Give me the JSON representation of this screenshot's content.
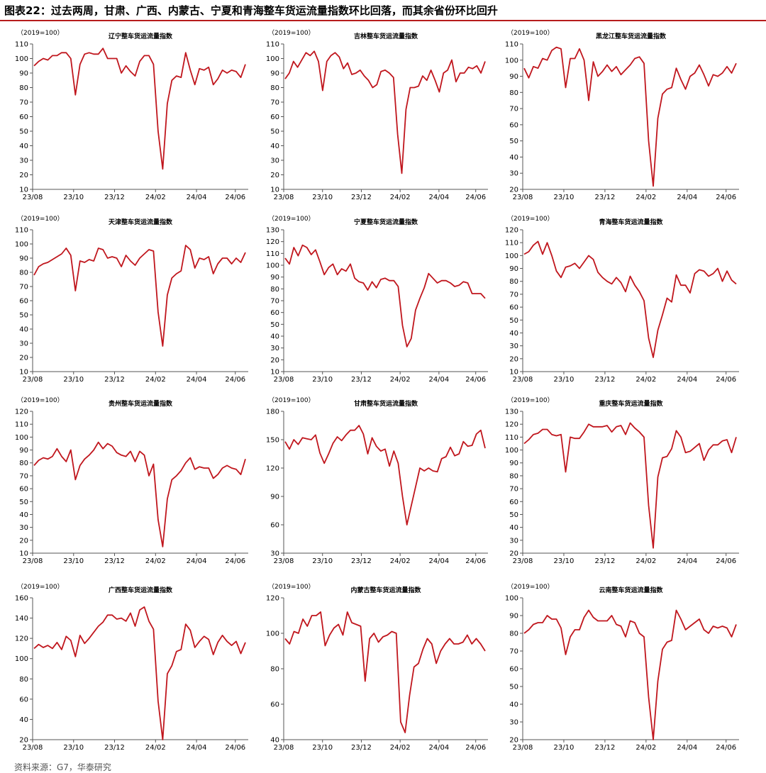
{
  "figure_title": "图表22：过去两周，甘肃、广西、内蒙古、宁夏和青海整车货运流量指数环比回落，而其余省份环比回升",
  "source_note": "资料来源：G7，华泰研究",
  "colors": {
    "line": "#c0161d",
    "title_rule": "#b71c1c",
    "axis": "#555555"
  },
  "chart_data": [
    {
      "type": "line",
      "title": "辽宁整车货运流量指数",
      "unit_label": "（2019=100）",
      "ylim": [
        10,
        110
      ],
      "yticks": [
        10,
        20,
        30,
        40,
        50,
        60,
        70,
        80,
        90,
        100,
        110
      ],
      "x_ticks": [
        "23/08",
        "23/10",
        "23/12",
        "24/02",
        "24/04",
        "24/06"
      ],
      "series": [
        {
          "values": [
            95,
            98,
            100,
            99,
            102,
            102,
            104,
            104,
            100,
            75,
            96,
            103,
            104,
            103,
            103,
            107,
            100,
            100,
            100,
            90,
            95,
            91,
            88,
            98,
            102,
            102,
            96,
            50,
            24,
            69,
            85,
            88,
            87,
            104,
            92,
            82,
            93,
            92,
            94,
            82,
            86,
            92,
            90,
            92,
            91,
            87,
            96
          ]
        }
      ]
    },
    {
      "type": "line",
      "title": "吉林整车货运流量指数",
      "unit_label": "（2019=100）",
      "ylim": [
        10,
        110
      ],
      "yticks": [
        10,
        20,
        30,
        40,
        50,
        60,
        70,
        80,
        90,
        100,
        110
      ],
      "x_ticks": [
        "23/08",
        "23/10",
        "23/12",
        "24/02",
        "24/04",
        "24/06"
      ],
      "series": [
        {
          "values": [
            86,
            90,
            98,
            94,
            99,
            104,
            102,
            105,
            98,
            78,
            98,
            102,
            104,
            101,
            93,
            97,
            89,
            90,
            92,
            88,
            85,
            80,
            82,
            91,
            92,
            90,
            87,
            48,
            21,
            65,
            80,
            80,
            81,
            88,
            85,
            92,
            85,
            77,
            90,
            92,
            99,
            84,
            90,
            90,
            94,
            93,
            95,
            90,
            98
          ]
        }
      ]
    },
    {
      "type": "line",
      "title": "黑龙江整车货运流量指数",
      "unit_label": "（2019=100）",
      "ylim": [
        20,
        110
      ],
      "yticks": [
        20,
        30,
        40,
        50,
        60,
        70,
        80,
        90,
        100,
        110
      ],
      "x_ticks": [
        "23/08",
        "23/10",
        "23/12",
        "24/02",
        "24/04",
        "24/06"
      ],
      "series": [
        {
          "values": [
            95,
            89,
            96,
            95,
            101,
            100,
            106,
            108,
            107,
            83,
            101,
            101,
            107,
            100,
            75,
            99,
            90,
            93,
            97,
            93,
            96,
            91,
            94,
            97,
            101,
            102,
            98,
            50,
            22,
            64,
            79,
            82,
            83,
            95,
            88,
            82,
            90,
            92,
            97,
            91,
            84,
            91,
            90,
            92,
            96,
            92,
            98
          ]
        }
      ]
    },
    {
      "type": "line",
      "title": "天津整车货运流量指数",
      "unit_label": "（2019=100）",
      "ylim": [
        10,
        110
      ],
      "yticks": [
        10,
        20,
        30,
        40,
        50,
        60,
        70,
        80,
        90,
        100,
        110
      ],
      "x_ticks": [
        "23/08",
        "23/10",
        "23/12",
        "24/02",
        "24/04",
        "24/06"
      ],
      "series": [
        {
          "values": [
            78,
            84,
            86,
            87,
            89,
            91,
            93,
            97,
            92,
            67,
            88,
            87,
            89,
            88,
            97,
            96,
            90,
            91,
            90,
            84,
            92,
            88,
            85,
            90,
            93,
            96,
            95,
            52,
            28,
            64,
            76,
            79,
            81,
            99,
            96,
            83,
            90,
            89,
            91,
            79,
            86,
            90,
            90,
            86,
            90,
            87,
            94
          ]
        }
      ]
    },
    {
      "type": "line",
      "title": "宁夏整车货运流量指数",
      "unit_label": "（2019=100）",
      "ylim": [
        10,
        130
      ],
      "yticks": [
        10,
        20,
        30,
        40,
        50,
        60,
        70,
        80,
        90,
        100,
        110,
        120,
        130
      ],
      "x_ticks": [
        "23/08",
        "23/10",
        "23/12",
        "24/02",
        "24/04",
        "24/06"
      ],
      "series": [
        {
          "values": [
            106,
            101,
            115,
            108,
            117,
            115,
            109,
            113,
            103,
            92,
            98,
            101,
            92,
            97,
            95,
            101,
            89,
            86,
            85,
            79,
            86,
            81,
            88,
            89,
            87,
            87,
            82,
            49,
            31,
            38,
            62,
            72,
            81,
            93,
            89,
            85,
            87,
            87,
            85,
            82,
            83,
            86,
            85,
            76,
            76,
            76,
            72
          ]
        }
      ]
    },
    {
      "type": "line",
      "title": "青海整车货运流量指数",
      "unit_label": "（2019=100）",
      "ylim": [
        10,
        120
      ],
      "yticks": [
        10,
        20,
        30,
        40,
        50,
        60,
        70,
        80,
        90,
        100,
        110,
        120
      ],
      "x_ticks": [
        "23/08",
        "23/10",
        "23/12",
        "24/02",
        "24/04",
        "24/06"
      ],
      "series": [
        {
          "values": [
            101,
            103,
            108,
            111,
            101,
            110,
            100,
            88,
            83,
            91,
            92,
            94,
            90,
            95,
            100,
            97,
            87,
            83,
            80,
            78,
            83,
            79,
            72,
            84,
            77,
            72,
            65,
            36,
            21,
            42,
            54,
            67,
            64,
            85,
            77,
            77,
            71,
            86,
            89,
            88,
            84,
            86,
            90,
            80,
            88,
            81,
            78
          ]
        }
      ]
    },
    {
      "type": "line",
      "title": "贵州整车货运流量指数",
      "unit_label": "（2019=100）",
      "ylim": [
        10,
        120
      ],
      "yticks": [
        10,
        20,
        30,
        40,
        50,
        60,
        70,
        80,
        90,
        100,
        110,
        120
      ],
      "x_ticks": [
        "23/08",
        "23/10",
        "23/12",
        "24/02",
        "24/04",
        "24/06"
      ],
      "series": [
        {
          "values": [
            78,
            82,
            84,
            83,
            85,
            91,
            85,
            81,
            90,
            67,
            78,
            83,
            86,
            90,
            96,
            91,
            95,
            93,
            88,
            86,
            85,
            89,
            81,
            89,
            86,
            70,
            79,
            36,
            15,
            52,
            67,
            70,
            74,
            80,
            84,
            75,
            77,
            76,
            76,
            68,
            71,
            76,
            78,
            76,
            75,
            71,
            83
          ]
        }
      ]
    },
    {
      "type": "line",
      "title": "甘肃整车货运流量指数",
      "unit_label": "（2019=100）",
      "ylim": [
        30,
        180
      ],
      "yticks": [
        30,
        60,
        90,
        120,
        150,
        180
      ],
      "x_ticks": [
        "23/08",
        "23/10",
        "23/12",
        "24/02",
        "24/04",
        "24/06"
      ],
      "series": [
        {
          "values": [
            148,
            140,
            150,
            145,
            152,
            151,
            150,
            155,
            136,
            125,
            135,
            146,
            153,
            149,
            155,
            160,
            160,
            165,
            156,
            135,
            152,
            143,
            138,
            140,
            122,
            138,
            125,
            90,
            60,
            80,
            100,
            120,
            117,
            120,
            117,
            116,
            130,
            132,
            142,
            133,
            135,
            148,
            143,
            144,
            156,
            160,
            141
          ]
        }
      ]
    },
    {
      "type": "line",
      "title": "重庆整车货运流量指数",
      "unit_label": "（2019=100）",
      "ylim": [
        20,
        130
      ],
      "yticks": [
        20,
        30,
        40,
        50,
        60,
        70,
        80,
        90,
        100,
        110,
        120,
        130
      ],
      "x_ticks": [
        "23/08",
        "23/10",
        "23/12",
        "24/02",
        "24/04",
        "24/06"
      ],
      "series": [
        {
          "values": [
            105,
            108,
            112,
            113,
            116,
            116,
            112,
            111,
            112,
            83,
            110,
            109,
            109,
            114,
            120,
            118,
            118,
            118,
            119,
            114,
            118,
            119,
            112,
            121,
            117,
            114,
            110,
            57,
            24,
            79,
            94,
            95,
            101,
            115,
            110,
            98,
            99,
            102,
            105,
            92,
            100,
            104,
            104,
            107,
            108,
            98,
            110
          ]
        }
      ]
    },
    {
      "type": "line",
      "title": "广西整车货运流量指数",
      "unit_label": "（2019=100）",
      "ylim": [
        20,
        160
      ],
      "yticks": [
        20,
        40,
        60,
        80,
        100,
        120,
        140,
        160
      ],
      "x_ticks": [
        "23/08",
        "23/10",
        "23/12",
        "24/02",
        "24/04",
        "24/06"
      ],
      "series": [
        {
          "values": [
            110,
            114,
            111,
            113,
            110,
            116,
            109,
            122,
            118,
            102,
            123,
            115,
            120,
            126,
            132,
            136,
            143,
            143,
            139,
            140,
            137,
            145,
            132,
            148,
            151,
            137,
            129,
            58,
            20,
            85,
            93,
            107,
            109,
            134,
            128,
            111,
            117,
            122,
            119,
            104,
            116,
            123,
            117,
            113,
            117,
            105,
            116
          ]
        }
      ]
    },
    {
      "type": "line",
      "title": "内蒙古整车货运流量指数",
      "unit_label": "（2019=100）",
      "ylim": [
        40,
        120
      ],
      "yticks": [
        40,
        60,
        80,
        100,
        120
      ],
      "x_ticks": [
        "23/08",
        "23/10",
        "23/12",
        "24/02",
        "24/04",
        "24/06"
      ],
      "series": [
        {
          "values": [
            97,
            94,
            101,
            100,
            108,
            104,
            110,
            110,
            112,
            93,
            99,
            103,
            105,
            99,
            112,
            106,
            105,
            104,
            73,
            97,
            100,
            95,
            98,
            99,
            101,
            100,
            50,
            44,
            65,
            81,
            83,
            91,
            97,
            94,
            83,
            90,
            94,
            97,
            94,
            94,
            95,
            99,
            94,
            97,
            94,
            90
          ]
        }
      ]
    },
    {
      "type": "line",
      "title": "云南整车货运流量指数",
      "unit_label": "（2019=100）",
      "ylim": [
        20,
        100
      ],
      "yticks": [
        20,
        30,
        40,
        50,
        60,
        70,
        80,
        90,
        100
      ],
      "x_ticks": [
        "23/08",
        "23/10",
        "23/12",
        "24/02",
        "24/04",
        "24/06"
      ],
      "series": [
        {
          "values": [
            80,
            82,
            85,
            86,
            86,
            90,
            88,
            88,
            83,
            68,
            78,
            82,
            82,
            89,
            93,
            89,
            87,
            87,
            87,
            90,
            85,
            84,
            78,
            87,
            86,
            80,
            78,
            44,
            20,
            53,
            71,
            75,
            76,
            93,
            88,
            82,
            84,
            86,
            88,
            82,
            80,
            84,
            83,
            84,
            83,
            78,
            85
          ]
        }
      ]
    }
  ]
}
